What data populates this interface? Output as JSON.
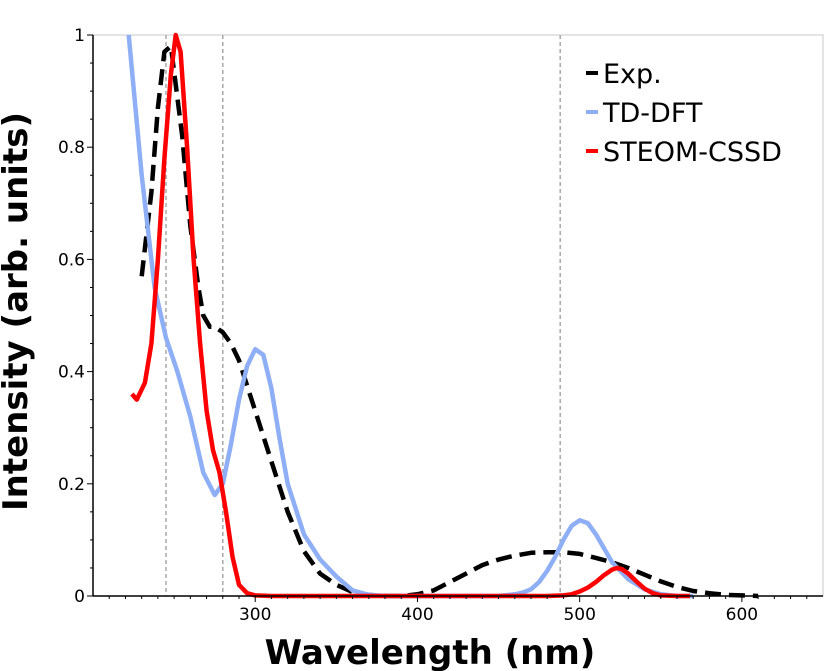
{
  "chart_data": {
    "type": "line",
    "title": "",
    "xlabel": "Wavelength (nm)",
    "ylabel": "Intensity (arb. units)",
    "xlim": [
      200,
      650
    ],
    "ylim": [
      0,
      1
    ],
    "x_ticks": [
      300,
      400,
      500,
      600
    ],
    "y_ticks": [
      0,
      0.2,
      0.4,
      0.6,
      0.8,
      1
    ],
    "y_tick_labels": [
      "0",
      "0.2",
      "0.4",
      "0.6",
      "0.8",
      "1"
    ],
    "legend_position": "top-right",
    "reference_lines_x": [
      245,
      280,
      488
    ],
    "series": [
      {
        "name": "Exp.",
        "color": "#000000",
        "style": "dashed",
        "x": [
          230,
          236,
          240,
          244,
          248,
          255,
          260,
          265,
          268,
          272,
          275,
          280,
          285,
          290,
          300,
          310,
          320,
          330,
          340,
          350,
          360,
          370,
          380,
          390,
          400,
          410,
          420,
          430,
          440,
          450,
          460,
          470,
          480,
          490,
          500,
          510,
          520,
          530,
          540,
          550,
          560,
          570,
          580,
          590,
          600,
          610
        ],
        "y": [
          0.57,
          0.72,
          0.87,
          0.97,
          0.98,
          0.82,
          0.66,
          0.55,
          0.5,
          0.48,
          0.48,
          0.47,
          0.45,
          0.42,
          0.33,
          0.24,
          0.15,
          0.08,
          0.04,
          0.02,
          0.007,
          0.002,
          0.0,
          0.0,
          0.003,
          0.01,
          0.025,
          0.04,
          0.055,
          0.065,
          0.072,
          0.077,
          0.078,
          0.078,
          0.075,
          0.068,
          0.06,
          0.05,
          0.038,
          0.026,
          0.016,
          0.009,
          0.005,
          0.002,
          0.001,
          0.0
        ]
      },
      {
        "name": "TD-DFT",
        "color": "#8eaef5",
        "style": "solid",
        "x": [
          222,
          230,
          238,
          245,
          252,
          260,
          268,
          275,
          280,
          285,
          290,
          295,
          300,
          305,
          310,
          315,
          320,
          330,
          340,
          350,
          360,
          370,
          380,
          390,
          400,
          410,
          420,
          430,
          440,
          450,
          460,
          465,
          470,
          475,
          480,
          485,
          490,
          495,
          500,
          505,
          510,
          515,
          520,
          530,
          540,
          550,
          560,
          570
        ],
        "y": [
          1.0,
          0.75,
          0.55,
          0.46,
          0.4,
          0.32,
          0.22,
          0.18,
          0.2,
          0.27,
          0.35,
          0.41,
          0.44,
          0.43,
          0.37,
          0.28,
          0.2,
          0.11,
          0.065,
          0.035,
          0.01,
          0.002,
          0.0,
          0.0,
          0.0,
          0.0,
          0.0,
          0.0,
          0.0,
          0.0,
          0.003,
          0.006,
          0.012,
          0.025,
          0.045,
          0.07,
          0.1,
          0.125,
          0.135,
          0.13,
          0.11,
          0.085,
          0.06,
          0.03,
          0.012,
          0.003,
          0.0,
          0.0
        ]
      },
      {
        "name": "STEOM-CSSD",
        "color": "#ff0000",
        "style": "solid",
        "x": [
          224,
          227,
          232,
          236,
          240,
          244,
          248,
          251,
          254,
          258,
          262,
          266,
          270,
          274,
          278,
          282,
          286,
          290,
          295,
          300,
          310,
          320,
          340,
          360,
          400,
          450,
          480,
          490,
          495,
          500,
          505,
          510,
          515,
          520,
          523,
          526,
          530,
          535,
          540,
          545,
          550,
          560,
          568
        ],
        "y": [
          0.36,
          0.35,
          0.38,
          0.45,
          0.6,
          0.78,
          0.93,
          1.0,
          0.97,
          0.8,
          0.6,
          0.45,
          0.33,
          0.26,
          0.22,
          0.15,
          0.07,
          0.02,
          0.005,
          0.001,
          0.0,
          0.0,
          0.0,
          0.0,
          0.0,
          0.0,
          0.0,
          0.001,
          0.003,
          0.008,
          0.015,
          0.025,
          0.037,
          0.047,
          0.05,
          0.048,
          0.04,
          0.026,
          0.013,
          0.005,
          0.001,
          0.0,
          0.0
        ]
      }
    ]
  }
}
